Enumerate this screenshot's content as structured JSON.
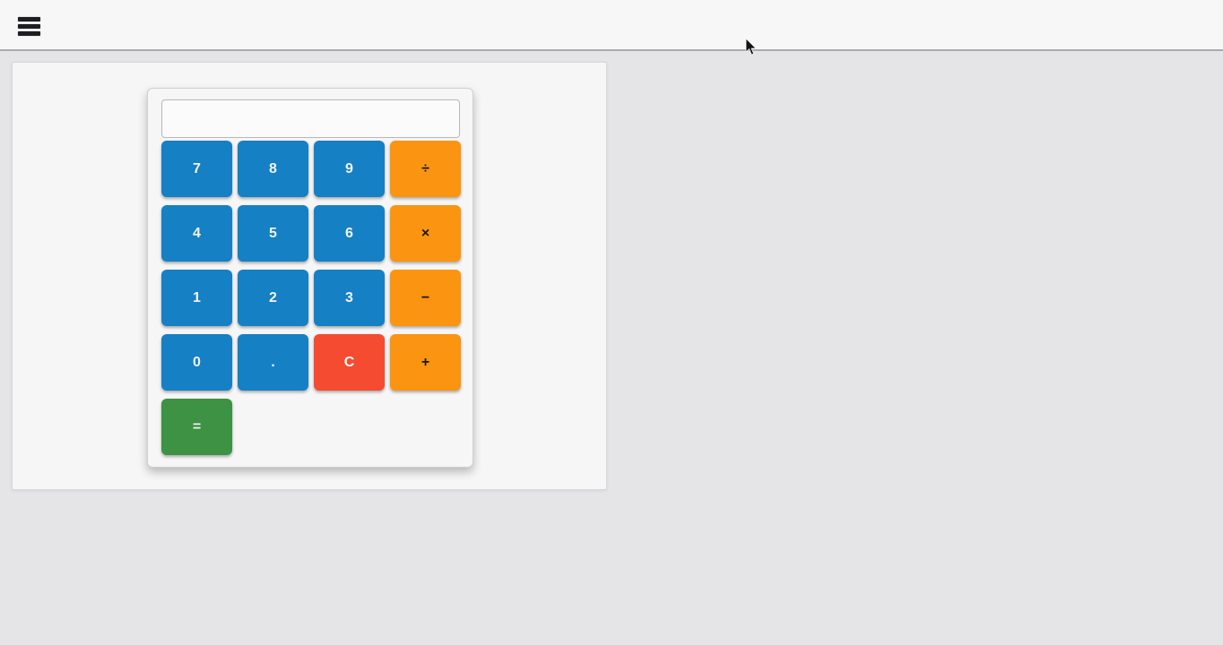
{
  "navbar": {
    "menu_icon": "hamburger-icon"
  },
  "calculator": {
    "display_value": "",
    "buttons": [
      {
        "name": "7",
        "label": "7",
        "type": "digit"
      },
      {
        "name": "8",
        "label": "8",
        "type": "digit"
      },
      {
        "name": "9",
        "label": "9",
        "type": "digit"
      },
      {
        "name": "divide",
        "label": "÷",
        "type": "operator"
      },
      {
        "name": "4",
        "label": "4",
        "type": "digit"
      },
      {
        "name": "5",
        "label": "5",
        "type": "digit"
      },
      {
        "name": "6",
        "label": "6",
        "type": "digit"
      },
      {
        "name": "multiply",
        "label": "×",
        "type": "operator"
      },
      {
        "name": "1",
        "label": "1",
        "type": "digit"
      },
      {
        "name": "2",
        "label": "2",
        "type": "digit"
      },
      {
        "name": "3",
        "label": "3",
        "type": "digit"
      },
      {
        "name": "subtract",
        "label": "−",
        "type": "operator"
      },
      {
        "name": "0",
        "label": "0",
        "type": "digit"
      },
      {
        "name": "decimal",
        "label": ".",
        "type": "digit"
      },
      {
        "name": "clear",
        "label": "C",
        "type": "clear"
      },
      {
        "name": "add",
        "label": "+",
        "type": "operator"
      },
      {
        "name": "equals",
        "label": "=",
        "type": "equals"
      }
    ]
  },
  "colors": {
    "digit_blue": "#1580c4",
    "operator_orange": "#fb9410",
    "clear_red": "#f44b31",
    "equals_green": "#3d9244"
  }
}
